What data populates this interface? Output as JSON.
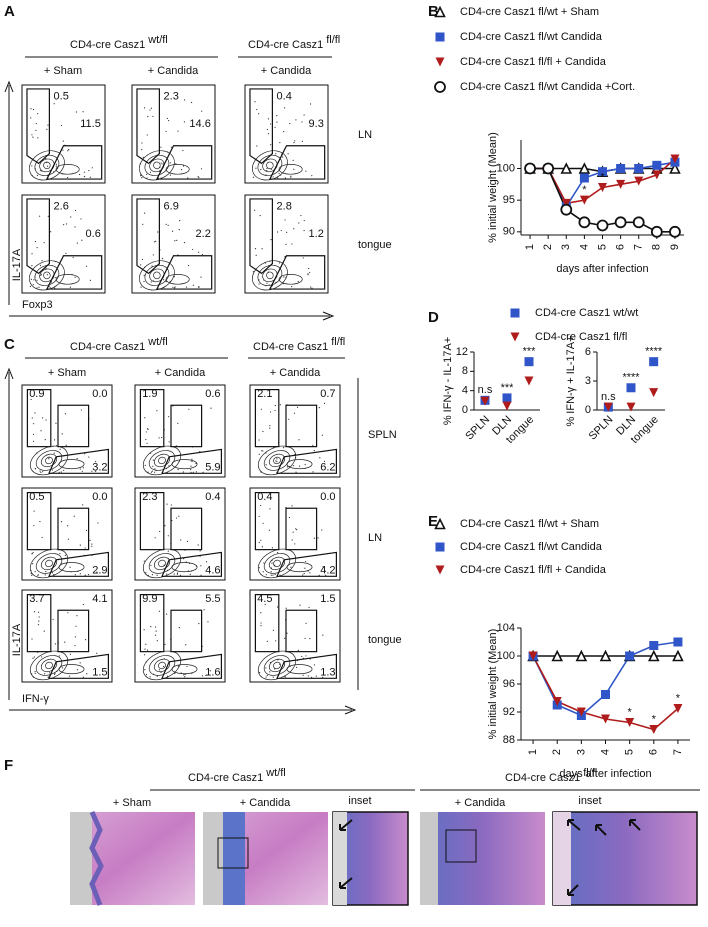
{
  "panel_labels": [
    "A",
    "B",
    "C",
    "D",
    "E",
    "F"
  ],
  "panel_A": {
    "group_headers": [
      {
        "text": "CD4-cre Casz1",
        "sup": "wt/fl"
      },
      {
        "text": "CD4-cre Casz1",
        "sup": "fl/fl"
      }
    ],
    "columns": [
      "+ Sham",
      "+ Candida",
      "+ Candida"
    ],
    "rows": [
      "LN",
      "tongue"
    ],
    "y_axis": "IL-17A",
    "x_axis": "Foxp3",
    "gates": [
      [
        [
          "0.5",
          "11.5"
        ],
        [
          "2.3",
          "14.6"
        ],
        [
          "0.4",
          "9.3"
        ]
      ],
      [
        [
          "2.6",
          "0.6"
        ],
        [
          "6.9",
          "2.2"
        ],
        [
          "2.8",
          "1.2"
        ]
      ]
    ]
  },
  "panel_C": {
    "group_headers": [
      {
        "text": "CD4-cre Casz1",
        "sup": "wt/fl"
      },
      {
        "text": "CD4-cre Casz1",
        "sup": "fl/fl"
      }
    ],
    "columns": [
      "+ Sham",
      "+ Candida",
      "+ Candida"
    ],
    "rows": [
      "SPLN",
      "LN",
      "tongue"
    ],
    "y_axis": "IL-17A",
    "x_axis": "IFN-γ",
    "gates": [
      [
        [
          "0.9",
          "0.0",
          "3.2"
        ],
        [
          "1.9",
          "0.6",
          "5.9"
        ],
        [
          "2.1",
          "0.7",
          "6.2"
        ]
      ],
      [
        [
          "0.5",
          "0.0",
          "2.9"
        ],
        [
          "2.3",
          "0.4",
          "4.6"
        ],
        [
          "0.4",
          "0.0",
          "4.2"
        ]
      ],
      [
        [
          "3.7",
          "4.1",
          "1.5"
        ],
        [
          "9.9",
          "5.5",
          "1.6"
        ],
        [
          "4.5",
          "1.5",
          "1.3"
        ]
      ]
    ]
  },
  "panel_F": {
    "group_headers": [
      {
        "text": "CD4-cre Casz1",
        "sup": "wt/fl"
      },
      {
        "text": "CD4-cre Casz1",
        "sup": "fl/fl"
      }
    ],
    "labels": [
      "+ Sham",
      "+ Candida",
      "inset",
      "+ Candida",
      "inset"
    ]
  },
  "chart_data": [
    {
      "type": "line",
      "x_label": "days after infection",
      "y_label": "% initial weight (Mean)",
      "x": [
        1,
        2,
        3,
        4,
        5,
        6,
        7,
        8,
        9
      ],
      "xlim": [
        0.5,
        9.5
      ],
      "xticks": [
        1,
        2,
        3,
        4,
        5,
        6,
        7,
        8,
        9
      ],
      "ylim": [
        89.5,
        104.5
      ],
      "yticks": [
        90,
        95,
        100
      ],
      "series": [
        {
          "name": "CD4-cre Casz1 fl/wt + Sham",
          "color": "#111111",
          "marker": "triangle-open",
          "values": [
            100,
            100,
            100,
            100,
            99.5,
            100,
            100,
            100,
            100
          ]
        },
        {
          "name": "CD4-cre Casz1 fl/wt Candida",
          "color": "#2f55c8",
          "marker": "square",
          "values": [
            100,
            100,
            94,
            98.5,
            99.5,
            100,
            100,
            100.5,
            101
          ]
        },
        {
          "name": "CD4-cre Casz1 fl/fl + Candida",
          "color": "#b01c1c",
          "marker": "triangle-down",
          "values": [
            100,
            100,
            94.5,
            95,
            97,
            97.5,
            98,
            99,
            101.5
          ]
        },
        {
          "name": "CD4-cre Casz1 fl/wt Candida +Cort.",
          "color": "#111111",
          "marker": "circle-open",
          "values": [
            100,
            100,
            93.5,
            91.5,
            91,
            91.5,
            91.5,
            90,
            90
          ]
        }
      ],
      "annotations": [
        {
          "text": "*",
          "x": 4
        },
        {
          "text": "*",
          "x": 5
        }
      ]
    },
    {
      "type": "dot",
      "y_label": "% IFN-γ - IL-17A+",
      "categories": [
        "SPLN",
        "DLN",
        "tongue"
      ],
      "ylim": [
        0,
        12
      ],
      "yticks": [
        0,
        4,
        8,
        12
      ],
      "series": [
        {
          "name": "CD4-cre Casz1 wt/wt",
          "color": "#2f55c8",
          "marker": "square",
          "values": [
            2,
            2.5,
            10
          ]
        },
        {
          "name": "CD4-cre Casz1 fl/fl",
          "color": "#b01c1c",
          "marker": "triangle-down",
          "values": [
            1.8,
            0.8,
            6
          ]
        }
      ],
      "significance": [
        "n.s",
        "***",
        "***"
      ]
    },
    {
      "type": "dot",
      "y_label": "% IFN-γ + IL-17A+",
      "categories": [
        "SPLN",
        "DLN",
        "tongue"
      ],
      "ylim": [
        0,
        6
      ],
      "yticks": [
        0,
        3,
        6
      ],
      "series": [
        {
          "color": "#2f55c8",
          "marker": "square",
          "values": [
            0.3,
            2.3,
            5
          ]
        },
        {
          "color": "#b01c1c",
          "marker": "triangle-down",
          "values": [
            0.3,
            0.3,
            1.8
          ]
        }
      ],
      "significance": [
        "n.s",
        "****",
        "****"
      ]
    },
    {
      "type": "line",
      "x_label": "days after infection",
      "y_label": "% initial weight (Mean)",
      "x": [
        1,
        2,
        3,
        4,
        5,
        6,
        7
      ],
      "xlim": [
        0.5,
        7.5
      ],
      "xticks": [
        1,
        2,
        3,
        4,
        5,
        6,
        7
      ],
      "ylim": [
        88,
        104
      ],
      "yticks": [
        88,
        92,
        96,
        100,
        104
      ],
      "series": [
        {
          "name": "CD4-cre Casz1 fl/wt + Sham",
          "color": "#111111",
          "marker": "triangle-open",
          "values": [
            100,
            100,
            100,
            100,
            100,
            100,
            100
          ]
        },
        {
          "name": "CD4-cre Casz1 fl/wt Candida",
          "color": "#2f55c8",
          "marker": "square",
          "values": [
            100,
            93,
            91.5,
            94.5,
            100,
            101.5,
            102
          ]
        },
        {
          "name": "CD4-cre Casz1 fl/fl + Candida",
          "color": "#b01c1c",
          "marker": "triangle-down",
          "values": [
            100,
            93.5,
            92,
            91,
            90.5,
            89.5,
            92.5
          ]
        }
      ],
      "annotations": [
        {
          "text": "*",
          "x": 5
        },
        {
          "text": "*",
          "x": 6
        },
        {
          "text": "*",
          "x": 7
        }
      ]
    }
  ]
}
